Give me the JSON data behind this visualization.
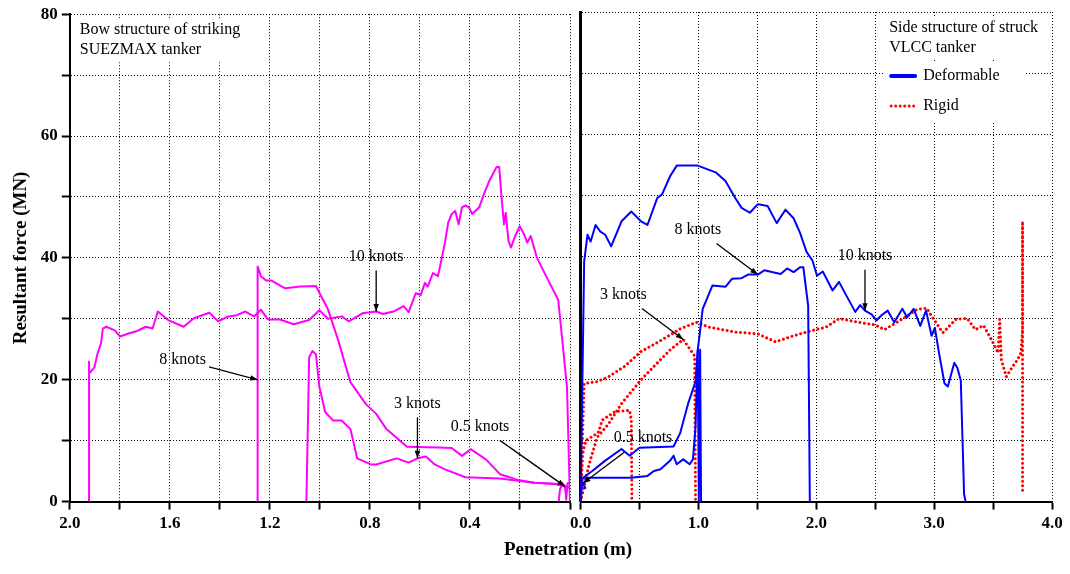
{
  "chart_data": [
    {
      "type": "line",
      "ylabel": "Resultant force (MN)",
      "xlabel": "Penetration (m)",
      "xlim": [
        2.0,
        0.0
      ],
      "xticks": [
        {
          "value": 2.0,
          "label": "2.0"
        },
        {
          "value": 1.8,
          "label": null
        },
        {
          "value": 1.6,
          "label": "1.6"
        },
        {
          "value": 1.4,
          "label": null
        },
        {
          "value": 1.2,
          "label": "1.2"
        },
        {
          "value": 1.0,
          "label": null
        },
        {
          "value": 0.8,
          "label": "0.8"
        },
        {
          "value": 0.6,
          "label": null
        },
        {
          "value": 0.4,
          "label": "0.4"
        },
        {
          "value": 0.2,
          "label": null
        },
        {
          "value": 0.0,
          "label": null
        }
      ],
      "ylim": [
        0,
        80
      ],
      "yticks": [
        0,
        {
          "value": 10,
          "label": null
        },
        20,
        {
          "value": 30,
          "label": null
        },
        40,
        {
          "value": 50,
          "label": null
        },
        60,
        {
          "value": 70,
          "label": null
        },
        80
      ],
      "grid": true,
      "marker": "none",
      "line_style": "solid",
      "annotations": [
        "Bow structure of striking SUEZMAX  tanker",
        {
          "text": "10 knots",
          "x": 0.775,
          "y": 31.2
        },
        {
          "text": "8 knots",
          "x": 1.249,
          "y": 20
        },
        {
          "text": "3 knots",
          "x": 0.61,
          "y": 7.1
        },
        {
          "text": "0.5 knots",
          "x": 0.02,
          "y": 2.5
        }
      ],
      "series": [
        {
          "color": "#ff00ff",
          "x": [
            1.923,
            1.923,
            1.923,
            1.902,
            1.889,
            1.875,
            1.868,
            1.854,
            1.82,
            1.799,
            1.765,
            1.731,
            1.696,
            1.669,
            1.648,
            1.607,
            1.545,
            1.504,
            1.442,
            1.407,
            1.366,
            1.332,
            1.298,
            1.263,
            1.236,
            1.208,
            1.16,
            1.105,
            1.043,
            1.002,
            0.968,
            0.913,
            0.885,
            0.83,
            0.775,
            0.748,
            0.706,
            0.665,
            0.645,
            0.617,
            0.597,
            0.58,
            0.569,
            0.548,
            0.528,
            0.514,
            0.5,
            0.487,
            0.473,
            0.459,
            0.445,
            0.432,
            0.418,
            0.404,
            0.391,
            0.363,
            0.342,
            0.322,
            0.294,
            0.283,
            0.273,
            0.264,
            0.257,
            0.246,
            0.236,
            0.219,
            0.201,
            0.184,
            0.171,
            0.157,
            0.132,
            0.088,
            0.047,
            0.012,
            0.0
          ],
          "values": [
            0,
            23,
            21,
            22,
            24.3,
            26,
            28.4,
            28.7,
            28.1,
            27.1,
            27.6,
            28.0,
            28.7,
            28.4,
            31.2,
            29.8,
            28.7,
            30.1,
            31,
            29.6,
            30.4,
            30.6,
            31.2,
            30.4,
            31.5,
            29.9,
            29.9,
            29.1,
            29.8,
            31.4,
            30,
            30.4,
            29.6,
            30.9,
            31.2,
            30.8,
            31.2,
            32.1,
            31.1,
            34.2,
            33.9,
            35.9,
            35.3,
            37.5,
            37.0,
            39.7,
            42.5,
            45.8,
            47.2,
            47.7,
            45.5,
            48.3,
            48.6,
            48.3,
            47.2,
            48.3,
            50.7,
            52.7,
            54.9,
            54.9,
            49.6,
            45.5,
            47.4,
            42.8,
            41.7,
            43.6,
            45.2,
            43.9,
            42.5,
            43.6,
            40.0,
            36.4,
            33.1,
            18.8,
            0
          ]
        },
        {
          "color": "#ff00ff",
          "x": [
            1.249,
            1.249,
            1.236,
            1.215,
            1.195,
            1.139,
            1.078,
            1.016,
            0.995,
            0.968,
            0.927,
            0.878,
            0.816,
            0.775,
            0.734,
            0.652,
            0.528,
            0.473,
            0.432,
            0.397,
            0.335,
            0.28,
            0.212,
            0.143,
            0.06,
            0.005
          ],
          "values": [
            0,
            38.6,
            37.0,
            36.3,
            36.3,
            35.0,
            35.3,
            35.4,
            33.7,
            31.6,
            26.5,
            19.6,
            16.0,
            14.4,
            11.9,
            9.0,
            8.9,
            8.8,
            7.5,
            8.6,
            6.9,
            4.5,
            3.6,
            3.1,
            2.9,
            2.3
          ]
        },
        {
          "color": "#ff00ff",
          "x": [
            1.054,
            1.043,
            1.03,
            1.016,
            1.002,
            0.979,
            0.947,
            0.913,
            0.878,
            0.851,
            0.796,
            0.775,
            0.693,
            0.645,
            0.61,
            0.576,
            0.541,
            0.5,
            0.418,
            0.28,
            0.143,
            0.047,
            0.04
          ],
          "values": [
            0,
            23.7,
            24.7,
            24.2,
            18.8,
            14.7,
            13.3,
            13.3,
            11.9,
            7.1,
            6.1,
            6.1,
            7.1,
            6.4,
            7.1,
            7.4,
            6.1,
            5.3,
            4.0,
            3.8,
            3.1,
            2.9,
            2.8
          ]
        },
        {
          "color": "#ff00ff",
          "x": [
            0.045,
            0.04,
            0.03,
            0.02,
            0.015,
            0.01,
            0.0
          ],
          "values": [
            0,
            2.0,
            3.0,
            2.5,
            0.3,
            3.0,
            3.0
          ]
        }
      ]
    },
    {
      "type": "line",
      "tick_labels": "x",
      "xlim": [
        0.0,
        4.0
      ],
      "xticks": [
        {
          "value": 0.0,
          "label": "0.0"
        },
        {
          "value": 0.5,
          "label": null
        },
        {
          "value": 1.0,
          "label": "1.0"
        },
        {
          "value": 1.5,
          "label": null
        },
        {
          "value": 2.0,
          "label": "2.0"
        },
        {
          "value": 2.5,
          "label": null
        },
        {
          "value": 3.0,
          "label": "3.0"
        },
        {
          "value": 3.5,
          "label": null
        },
        {
          "value": 4.0,
          "label": "4.0"
        }
      ],
      "ylim": [
        0,
        80
      ],
      "yticks": [
        0,
        {
          "value": 10,
          "label": null
        },
        20,
        {
          "value": 30,
          "label": null
        },
        40,
        {
          "value": 50,
          "label": null
        },
        60,
        {
          "value": 70,
          "label": null
        },
        80
      ],
      "grid": true,
      "marker": "none",
      "line_style": "solid",
      "legend": "top right",
      "annotations": [
        "Side structure of struck VLCC  tanker",
        {
          "text": "8 knots",
          "x": 1.504,
          "y": 37.1
        },
        {
          "text": "3 knots",
          "x": 0.871,
          "y": 26.5
        },
        {
          "text": "0.5 knots",
          "x": 0.02,
          "y": 3.0
        },
        {
          "text": "10 knots",
          "x": 2.413,
          "y": 31.2
        }
      ],
      "series": [
        {
          "color": "#0000ff",
          "x": [
            0.0,
            0.03,
            0.058,
            0.085,
            0.127,
            0.168,
            0.209,
            0.259,
            0.347,
            0.43,
            0.512,
            0.567,
            0.65,
            0.691,
            0.76,
            0.816,
            0.994,
            1.146,
            1.229,
            1.312,
            1.366,
            1.436,
            1.504,
            1.587,
            1.664,
            1.738,
            1.807,
            1.862,
            1.917,
            1.967,
            2.006,
            2.055,
            2.138,
            2.193,
            2.248,
            2.331,
            2.372,
            2.413,
            2.469,
            2.51,
            2.551,
            2.606,
            2.661,
            2.73,
            2.771,
            2.826,
            2.882,
            2.931,
            2.978,
            3.006,
            3.041,
            3.088,
            3.116,
            3.171,
            3.198,
            3.226,
            3.24,
            3.254,
            3.267
          ],
          "values": [
            0,
            39.2,
            43.6,
            42.5,
            45.2,
            44.1,
            43.6,
            41.7,
            45.8,
            47.4,
            45.8,
            45.2,
            49.6,
            50.2,
            53.2,
            54.9,
            54.9,
            53.8,
            52.4,
            49.6,
            48.0,
            47.2,
            48.6,
            48.3,
            45.5,
            47.7,
            46.3,
            43.9,
            40.8,
            39.4,
            36.9,
            37.6,
            34.5,
            35.9,
            33.9,
            31.0,
            32.1,
            31.2,
            30.6,
            29.6,
            30.4,
            31.2,
            29.3,
            31.5,
            30.1,
            31.5,
            28.7,
            31.2,
            27.1,
            28.4,
            24.3,
            19.3,
            18.8,
            22.7,
            21.8,
            19.8,
            10.5,
            1.2,
            0
          ]
        },
        {
          "name": "Deformable",
          "color": "#0000ff",
          "x": [
            0.0,
            0.0,
            0.099,
            0.209,
            0.347,
            0.416,
            0.499,
            0.788,
            0.843,
            0.912,
            0.975,
            0.994,
            1.036,
            1.118,
            1.229,
            1.284,
            1.366,
            1.421,
            1.504,
            1.559,
            1.697,
            1.752,
            1.807,
            1.862,
            1.89,
            1.931,
            1.945
          ],
          "values": [
            0,
            3.6,
            5.0,
            6.7,
            8.6,
            7.5,
            8.8,
            9.0,
            11.1,
            16.0,
            19.6,
            24.8,
            31.5,
            35.3,
            35.1,
            36.4,
            36.5,
            37.1,
            37.1,
            37.8,
            37.2,
            38.1,
            37.5,
            38.3,
            38.3,
            32.0,
            0
          ]
        },
        {
          "color": "#0000ff",
          "x": [
            0.0,
            0.017,
            0.43,
            0.567,
            0.622,
            0.678,
            0.76,
            0.788,
            0.815,
            0.871,
            0.925,
            0.953,
            0.975,
            0.994,
            1.003,
            1.014,
            1.022
          ],
          "values": [
            0,
            3.9,
            3.9,
            4.2,
            5.0,
            5.3,
            6.7,
            7.5,
            6.1,
            6.9,
            6.1,
            6.9,
            12.2,
            24.8,
            0,
            24.8,
            0
          ]
        },
        {
          "color": "#0000ff",
          "x": [
            0.0,
            0.005,
            0.02,
            0.04
          ],
          "values": [
            0,
            2.8,
            3.0,
            2.2
          ]
        },
        {
          "name": "Rigid",
          "color": "#ff0000",
          "line_style": "dotted",
          "x": [
            0.0,
            0.03,
            0.14,
            0.237,
            0.374,
            0.512,
            0.678,
            0.843,
            0.981,
            1.091,
            1.312,
            1.504,
            1.655,
            1.807,
            1.972,
            2.083,
            2.193,
            2.386,
            2.496,
            2.579,
            2.744,
            2.854,
            2.937,
            2.978,
            3.074,
            3.185,
            3.281,
            3.35,
            3.419,
            3.502,
            3.543,
            3.556,
            3.57,
            3.612,
            3.667,
            3.708,
            3.736,
            3.75,
            3.75,
            3.75,
            3.75
          ],
          "values": [
            0,
            19.3,
            19.6,
            20.4,
            22.1,
            24.5,
            26.3,
            28.2,
            29.3,
            28.5,
            27.7,
            27.4,
            26.1,
            27.1,
            28.0,
            28.5,
            29.9,
            29.2,
            28.9,
            28.1,
            30.0,
            31.4,
            31.6,
            30.3,
            27.6,
            29.8,
            29.9,
            28.1,
            28.8,
            25.9,
            24.3,
            29.8,
            23.2,
            20.4,
            22.1,
            23.2,
            24.3,
            28.0,
            45.8,
            19.5,
            1.7
          ]
        },
        {
          "color": "#ff0000",
          "line_style": "dotted",
          "x": [
            0.0,
            0.072,
            0.14,
            0.237,
            0.347,
            0.512,
            0.678,
            0.76,
            0.871,
            0.967,
            0.975
          ],
          "values": [
            0,
            6.1,
            10.5,
            12.7,
            16.0,
            19.9,
            23.2,
            24.8,
            26.5,
            23.8,
            0
          ]
        },
        {
          "color": "#ff0000",
          "line_style": "dotted",
          "x": [
            0.0,
            0.017,
            0.044,
            0.113,
            0.154,
            0.182,
            0.292,
            0.416,
            0.43,
            0.435
          ],
          "values": [
            0,
            7.8,
            10.0,
            10.8,
            11.4,
            13.3,
            14.7,
            14.9,
            13.3,
            0
          ]
        }
      ]
    }
  ]
}
